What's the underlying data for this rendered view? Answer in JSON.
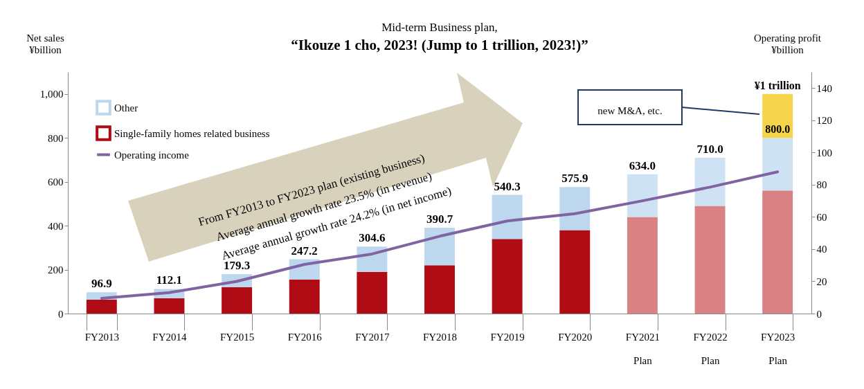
{
  "chart_data": {
    "type": "bar",
    "title": "Mid-term Business plan,",
    "subtitle": "“Ikouze 1 cho, 2023! (Jump to 1 trillion, 2023!)”",
    "ylabel": "Net sales\n¥billion",
    "y2label": "Operating profit\n¥billion",
    "categories": [
      "FY2013",
      "FY2014",
      "FY2015",
      "FY2016",
      "FY2017",
      "FY2018",
      "FY2019",
      "FY2020",
      "FY2021\nPlan",
      "FY2022\nPlan",
      "FY2023\nPlan"
    ],
    "stacked": true,
    "legend": "top left",
    "grid": false,
    "ylim": [
      0,
      1100
    ],
    "yticks": [
      0,
      {
        "value": 200,
        "label": "200"
      },
      400,
      600,
      800,
      {
        "value": 1000,
        "label": "1,000"
      }
    ],
    "y2lim": [
      0,
      150
    ],
    "y2ticks": [
      0,
      20,
      40,
      60,
      80,
      100,
      120,
      140
    ],
    "series": [
      {
        "name": "Single-family homes related business",
        "color": "#b00c16",
        "colors": [
          "#b00c16",
          "#b00c16",
          "#b00c16",
          "#b00c16",
          "#b00c16",
          "#b00c16",
          "#b00c16",
          "#b00c16",
          "#d98285",
          "#d98285",
          "#d98285"
        ],
        "values": [
          63,
          70,
          120,
          155,
          190,
          220,
          340,
          380,
          440,
          490,
          560
        ]
      },
      {
        "name": "Other",
        "color": "#bdd7ee",
        "colors": [
          "#bdd7ee",
          "#bdd7ee",
          "#bdd7ee",
          "#bdd7ee",
          "#bdd7ee",
          "#bdd7ee",
          "#bdd7ee",
          "#bdd7ee",
          "#cfe2f3",
          "#cfe2f3",
          "#cfe2f3"
        ],
        "values": [
          33.9,
          42.1,
          59.3,
          92.2,
          114.6,
          170.7,
          200.3,
          195.9,
          194.0,
          220.0,
          240.0
        ]
      },
      {
        "color": "#f5d44c",
        "values": [
          null,
          null,
          null,
          null,
          null,
          null,
          null,
          null,
          null,
          null,
          200
        ]
      },
      {
        "name": "Operating income",
        "type": "line",
        "axis": "y2",
        "color": "#8064a2",
        "values": [
          9.5,
          13,
          20,
          30.5,
          37,
          48,
          57.5,
          62,
          70,
          78.5,
          88
        ]
      }
    ],
    "totals": [
      "96.9",
      "112.1",
      "179.3",
      "247.2",
      "304.6",
      "390.7",
      "540.3",
      "575.9",
      "634.0",
      "710.0",
      null
    ],
    "annotations": [
      "From FY2013 to FY2023 plan (existing business)",
      "Average annual  growth rate 23.5% (in revenue)",
      "Average annual  growth rate 24.2% (in net income)",
      "new M&A, etc.",
      {
        "text": "¥1 trillion",
        "x": "FY2023\nPlan",
        "y": 1000
      },
      {
        "text": "800.0",
        "x": "FY2023\nPlan",
        "y": 800
      }
    ]
  }
}
